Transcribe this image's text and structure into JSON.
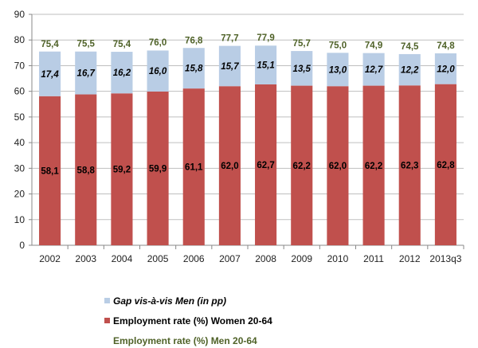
{
  "chart_data": {
    "type": "bar",
    "stacked": true,
    "title": "",
    "xlabel": "",
    "ylabel": "",
    "ylim": [
      0,
      90
    ],
    "yticks": [
      0,
      10,
      20,
      30,
      40,
      50,
      60,
      70,
      80,
      90
    ],
    "grid": true,
    "legend_placement": "bottom",
    "categories": [
      "2002",
      "2003",
      "2004",
      "2005",
      "2006",
      "2007",
      "2008",
      "2009",
      "2010",
      "2011",
      "2012",
      "2013q3"
    ],
    "series": [
      {
        "name": "Employment rate (%) Women 20-64",
        "color": "#c0504d",
        "label_color": "#000000",
        "values": [
          "58,1",
          "58,8",
          "59,2",
          "59,9",
          "61,1",
          "62,0",
          "62,7",
          "62,2",
          "62,0",
          "62,2",
          "62,3",
          "62,8"
        ]
      },
      {
        "name": "Gap vis-à-vis Men (in pp)",
        "color": "#b9cde5",
        "label_color": "#000000",
        "values": [
          "17,4",
          "16,7",
          "16,2",
          "16,0",
          "15,8",
          "15,7",
          "15,1",
          "13,5",
          "13,0",
          "12,7",
          "12,2",
          "12,0"
        ]
      },
      {
        "name": "Employment rate (%) Men 20-64",
        "color": "#4f6228",
        "label_color": "#4f6228",
        "values": [
          "75,4",
          "75,5",
          "75,4",
          "76,0",
          "76,8",
          "77,7",
          "77,9",
          "75,7",
          "75,0",
          "74,9",
          "74,5",
          "74,8"
        ]
      }
    ],
    "legend": [
      {
        "label": "Gap vis-à-vis Men (in pp)",
        "color": "#b9cde5",
        "italic": true,
        "text_color": "#000000"
      },
      {
        "label": "Employment rate (%) Women 20-64",
        "color": "#c0504d",
        "italic": false,
        "text_color": "#000000"
      },
      {
        "label": "Employment rate (%) Men 20-64",
        "color": null,
        "italic": false,
        "text_color": "#4f6228"
      }
    ]
  }
}
